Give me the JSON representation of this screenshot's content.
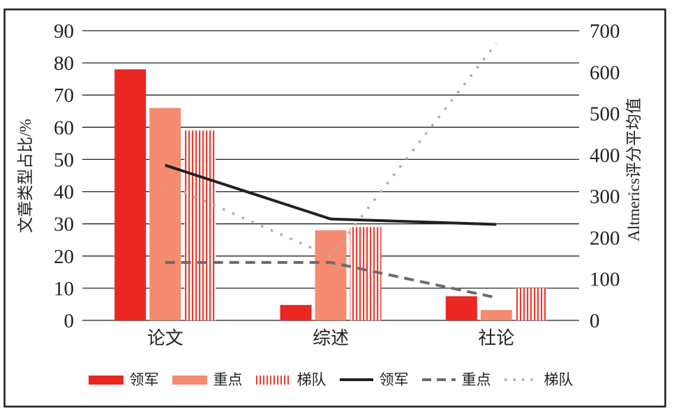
{
  "chart_data": {
    "type": "bar-line-combo",
    "categories": [
      "论文",
      "综述",
      "社论"
    ],
    "bar_series": [
      {
        "name": "领军",
        "values": [
          78,
          4.8,
          7.5
        ],
        "color": "#eb2724",
        "pattern": "solid"
      },
      {
        "name": "重点",
        "values": [
          66,
          28,
          3.2
        ],
        "color": "#f58b71",
        "pattern": "solid"
      },
      {
        "name": "梯队",
        "values": [
          59,
          29,
          10
        ],
        "color": "#ee3c30",
        "pattern": "vertical-stripes"
      }
    ],
    "line_series": [
      {
        "name": "领军",
        "values": [
          375,
          245,
          232
        ],
        "color": "#231f20",
        "style": "solid"
      },
      {
        "name": "重点",
        "values": [
          140,
          140,
          55
        ],
        "color": "#6a6b6e",
        "style": "dashed"
      },
      {
        "name": "梯队",
        "values": [
          330,
          155,
          670
        ],
        "color": "#aeaeb0",
        "style": "dotted"
      }
    ],
    "left_axis": {
      "label": "文章类型占比/%",
      "min": 0,
      "max": 90,
      "step": 10,
      "tick_labels": [
        "0",
        "10",
        "20",
        "30",
        "40",
        "50",
        "60",
        "70",
        "80",
        "90"
      ]
    },
    "right_axis": {
      "label": "Altmerics评分平均值",
      "min": 0,
      "max": 700,
      "step": 100,
      "tick_labels": [
        "0",
        "100",
        "200",
        "300",
        "400",
        "500",
        "600",
        "700"
      ]
    },
    "grid": "horizontal-only",
    "legend_position": "bottom"
  }
}
